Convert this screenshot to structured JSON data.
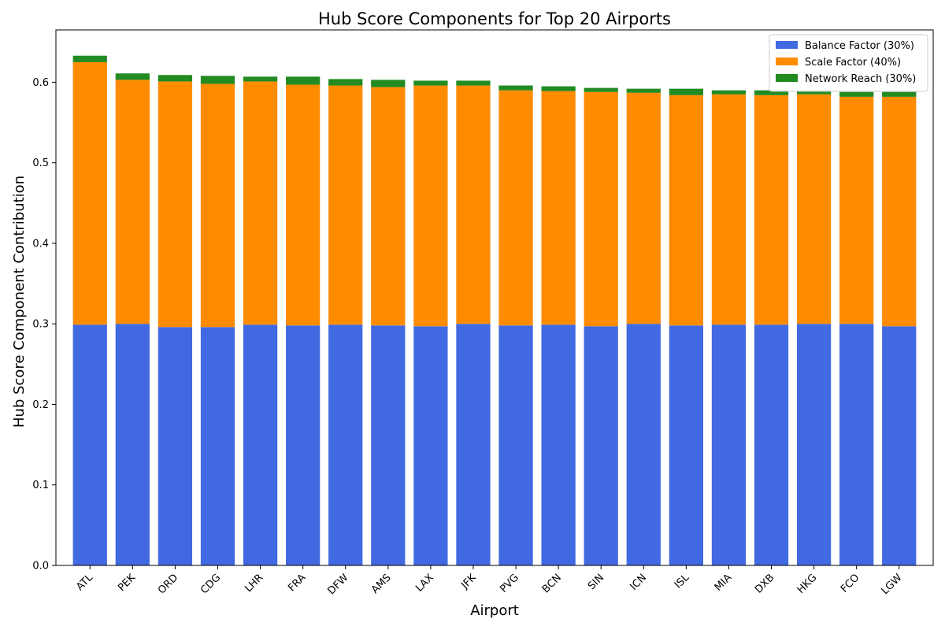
{
  "chart_data": {
    "type": "bar",
    "stacked": true,
    "title": "Hub Score Components for Top 20 Airports",
    "xlabel": "Airport",
    "ylabel": "Hub Score Component Contribution",
    "ylim": [
      0,
      0.665
    ],
    "yticks": [
      "0.0",
      "0.1",
      "0.2",
      "0.3",
      "0.4",
      "0.5",
      "0.6"
    ],
    "grid": false,
    "legend_position": "top-right",
    "categories": [
      "ATL",
      "PEK",
      "ORD",
      "CDG",
      "LHR",
      "FRA",
      "DFW",
      "AMS",
      "LAX",
      "JFK",
      "PVG",
      "BCN",
      "SIN",
      "ICN",
      "ISL",
      "MIA",
      "DXB",
      "HKG",
      "FCO",
      "LGW"
    ],
    "series": [
      {
        "name": "Balance Factor (30%)",
        "color": "#4169e1",
        "values": [
          0.299,
          0.3,
          0.296,
          0.296,
          0.299,
          0.298,
          0.299,
          0.298,
          0.297,
          0.3,
          0.298,
          0.299,
          0.297,
          0.3,
          0.298,
          0.299,
          0.299,
          0.3,
          0.3,
          0.297
        ]
      },
      {
        "name": "Scale Factor (40%)",
        "color": "#ff8c00",
        "values": [
          0.326,
          0.303,
          0.305,
          0.302,
          0.302,
          0.299,
          0.297,
          0.296,
          0.299,
          0.296,
          0.292,
          0.29,
          0.291,
          0.287,
          0.286,
          0.286,
          0.285,
          0.285,
          0.282,
          0.285
        ]
      },
      {
        "name": "Network Reach (30%)",
        "color": "#228b22",
        "values": [
          0.008,
          0.008,
          0.008,
          0.01,
          0.006,
          0.01,
          0.008,
          0.009,
          0.006,
          0.006,
          0.006,
          0.006,
          0.005,
          0.005,
          0.008,
          0.005,
          0.006,
          0.005,
          0.006,
          0.006
        ]
      }
    ]
  }
}
